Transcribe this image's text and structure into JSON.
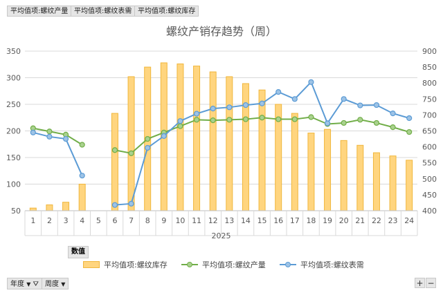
{
  "field_buttons": [
    "平均值项:螺纹产量",
    "平均值项:螺纹表需",
    "平均值项:螺纹库存"
  ],
  "values_tag": "数值",
  "filters": {
    "year": "年度",
    "week": "周度"
  },
  "zoom": {
    "plus": "+",
    "minus": "−"
  },
  "colors": {
    "bar_fill": "#ffd57f",
    "bar_stroke": "#f0b63c",
    "production": "#70ad47",
    "demand": "#5b9bd5",
    "grid": "#d9d9d9",
    "text": "#595959"
  },
  "chart_data": {
    "type": "bar+line",
    "title": "螺纹产销存趋势（周）",
    "x_group_label": "2025",
    "categories": [
      "1",
      "2",
      "3",
      "4",
      "5",
      "6",
      "7",
      "8",
      "9",
      "10",
      "11",
      "12",
      "13",
      "14",
      "15",
      "16",
      "17",
      "18",
      "19",
      "20",
      "21",
      "22",
      "23",
      "24"
    ],
    "y_left": {
      "min": 50,
      "max": 350,
      "ticks": [
        50,
        100,
        150,
        200,
        250,
        300,
        350
      ]
    },
    "y_right": {
      "min": 400,
      "max": 900,
      "ticks": [
        400,
        450,
        500,
        550,
        600,
        650,
        700,
        750,
        800,
        850,
        900
      ]
    },
    "series": [
      {
        "name": "平均值项:螺纹库存",
        "type": "bar",
        "axis": "left",
        "values": [
          55,
          61,
          66,
          100,
          null,
          233,
          302,
          320,
          328,
          326,
          322,
          311,
          302,
          289,
          277,
          250,
          233,
          196,
          203,
          182,
          173,
          159,
          153,
          145
        ]
      },
      {
        "name": "平均值项:螺纹产量",
        "type": "line",
        "axis": "left",
        "values": [
          205,
          199,
          193,
          174,
          null,
          164,
          158,
          185,
          197,
          209,
          221,
          220,
          221,
          222,
          225,
          222,
          222,
          226,
          213,
          215,
          221,
          215,
          207,
          198
        ]
      },
      {
        "name": "平均值项:螺纹表需",
        "type": "line",
        "axis": "right",
        "values": [
          645,
          632,
          625,
          510,
          null,
          418,
          422,
          597,
          634,
          681,
          704,
          720,
          724,
          731,
          736,
          772,
          750,
          803,
          674,
          750,
          730,
          731,
          705,
          690
        ]
      }
    ]
  }
}
